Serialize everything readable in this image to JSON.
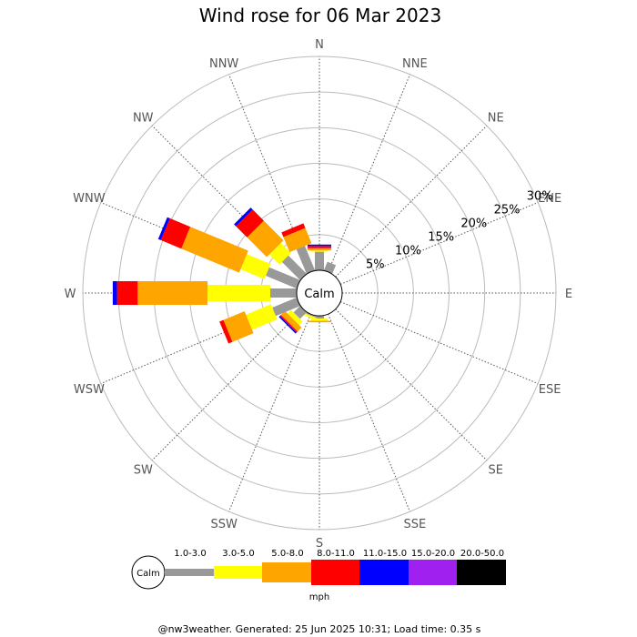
{
  "chart_data": {
    "type": "wind-rose",
    "title": "Wind rose for 06 Mar 2023",
    "directions": [
      "N",
      "NNE",
      "NE",
      "ENE",
      "E",
      "ESE",
      "SE",
      "SSE",
      "S",
      "SSW",
      "SW",
      "WSW",
      "W",
      "WNW",
      "NW",
      "NNW"
    ],
    "radial_max_percent": 30,
    "radial_ticks": [
      "5%",
      "10%",
      "15%",
      "20%",
      "25%",
      "30%"
    ],
    "radial_tick_values": [
      5,
      10,
      15,
      20,
      25,
      30
    ],
    "calm_label": "Calm",
    "speed_bins": [
      {
        "label": "1.0-3.0",
        "color": "#999999"
      },
      {
        "label": "3.0-5.0",
        "color": "#ffff00"
      },
      {
        "label": "5.0-8.0",
        "color": "#ffa500"
      },
      {
        "label": "8.0-11.0",
        "color": "#ff0000"
      },
      {
        "label": "11.0-15.0",
        "color": "#0000ff"
      },
      {
        "label": "15.0-20.0",
        "color": "#a020f0"
      },
      {
        "label": "20.0-50.0",
        "color": "#000000"
      }
    ],
    "units": "mph",
    "series": [
      {
        "direction": "N",
        "values": [
          2.6,
          0.2,
          0.3,
          0.3,
          0.2,
          0,
          0
        ]
      },
      {
        "direction": "NNE",
        "values": [
          1.3,
          0,
          0,
          0,
          0,
          0,
          0
        ]
      },
      {
        "direction": "NE",
        "values": [
          0,
          0,
          0,
          0,
          0,
          0,
          0
        ]
      },
      {
        "direction": "ENE",
        "values": [
          0,
          0,
          0,
          0,
          0,
          0,
          0
        ]
      },
      {
        "direction": "E",
        "values": [
          0,
          0,
          0,
          0,
          0,
          0,
          0
        ]
      },
      {
        "direction": "ESE",
        "values": [
          0,
          0,
          0,
          0,
          0,
          0,
          0
        ]
      },
      {
        "direction": "SE",
        "values": [
          0,
          0,
          0,
          0,
          0,
          0,
          0
        ]
      },
      {
        "direction": "SSE",
        "values": [
          0,
          0,
          0,
          0,
          0,
          0,
          0
        ]
      },
      {
        "direction": "S",
        "values": [
          0.4,
          0.3,
          0.2,
          0,
          0,
          0,
          0
        ]
      },
      {
        "direction": "SSW",
        "values": [
          0.2,
          0.3,
          0,
          0,
          0,
          0,
          0
        ]
      },
      {
        "direction": "SW",
        "values": [
          1.3,
          0.7,
          0.8,
          0.2,
          0.2,
          0,
          0
        ]
      },
      {
        "direction": "WSW",
        "values": [
          3.7,
          3.8,
          3.2,
          0.6,
          0,
          0,
          0
        ]
      },
      {
        "direction": "W",
        "values": [
          3.7,
          8.8,
          9.8,
          2.9,
          0.6,
          0,
          0
        ]
      },
      {
        "direction": "WNW",
        "values": [
          4.7,
          3.6,
          8.8,
          3.1,
          0.4,
          0,
          0
        ]
      },
      {
        "direction": "NW",
        "values": [
          3.6,
          2.0,
          3.9,
          2.2,
          0.4,
          0,
          0
        ]
      },
      {
        "direction": "NNW",
        "values": [
          3.7,
          0,
          2.3,
          0.7,
          0,
          0,
          0
        ]
      }
    ]
  },
  "footer": "@nw3weather. Generated: 25 Jun 2025 10:31; Load time: 0.35 s"
}
